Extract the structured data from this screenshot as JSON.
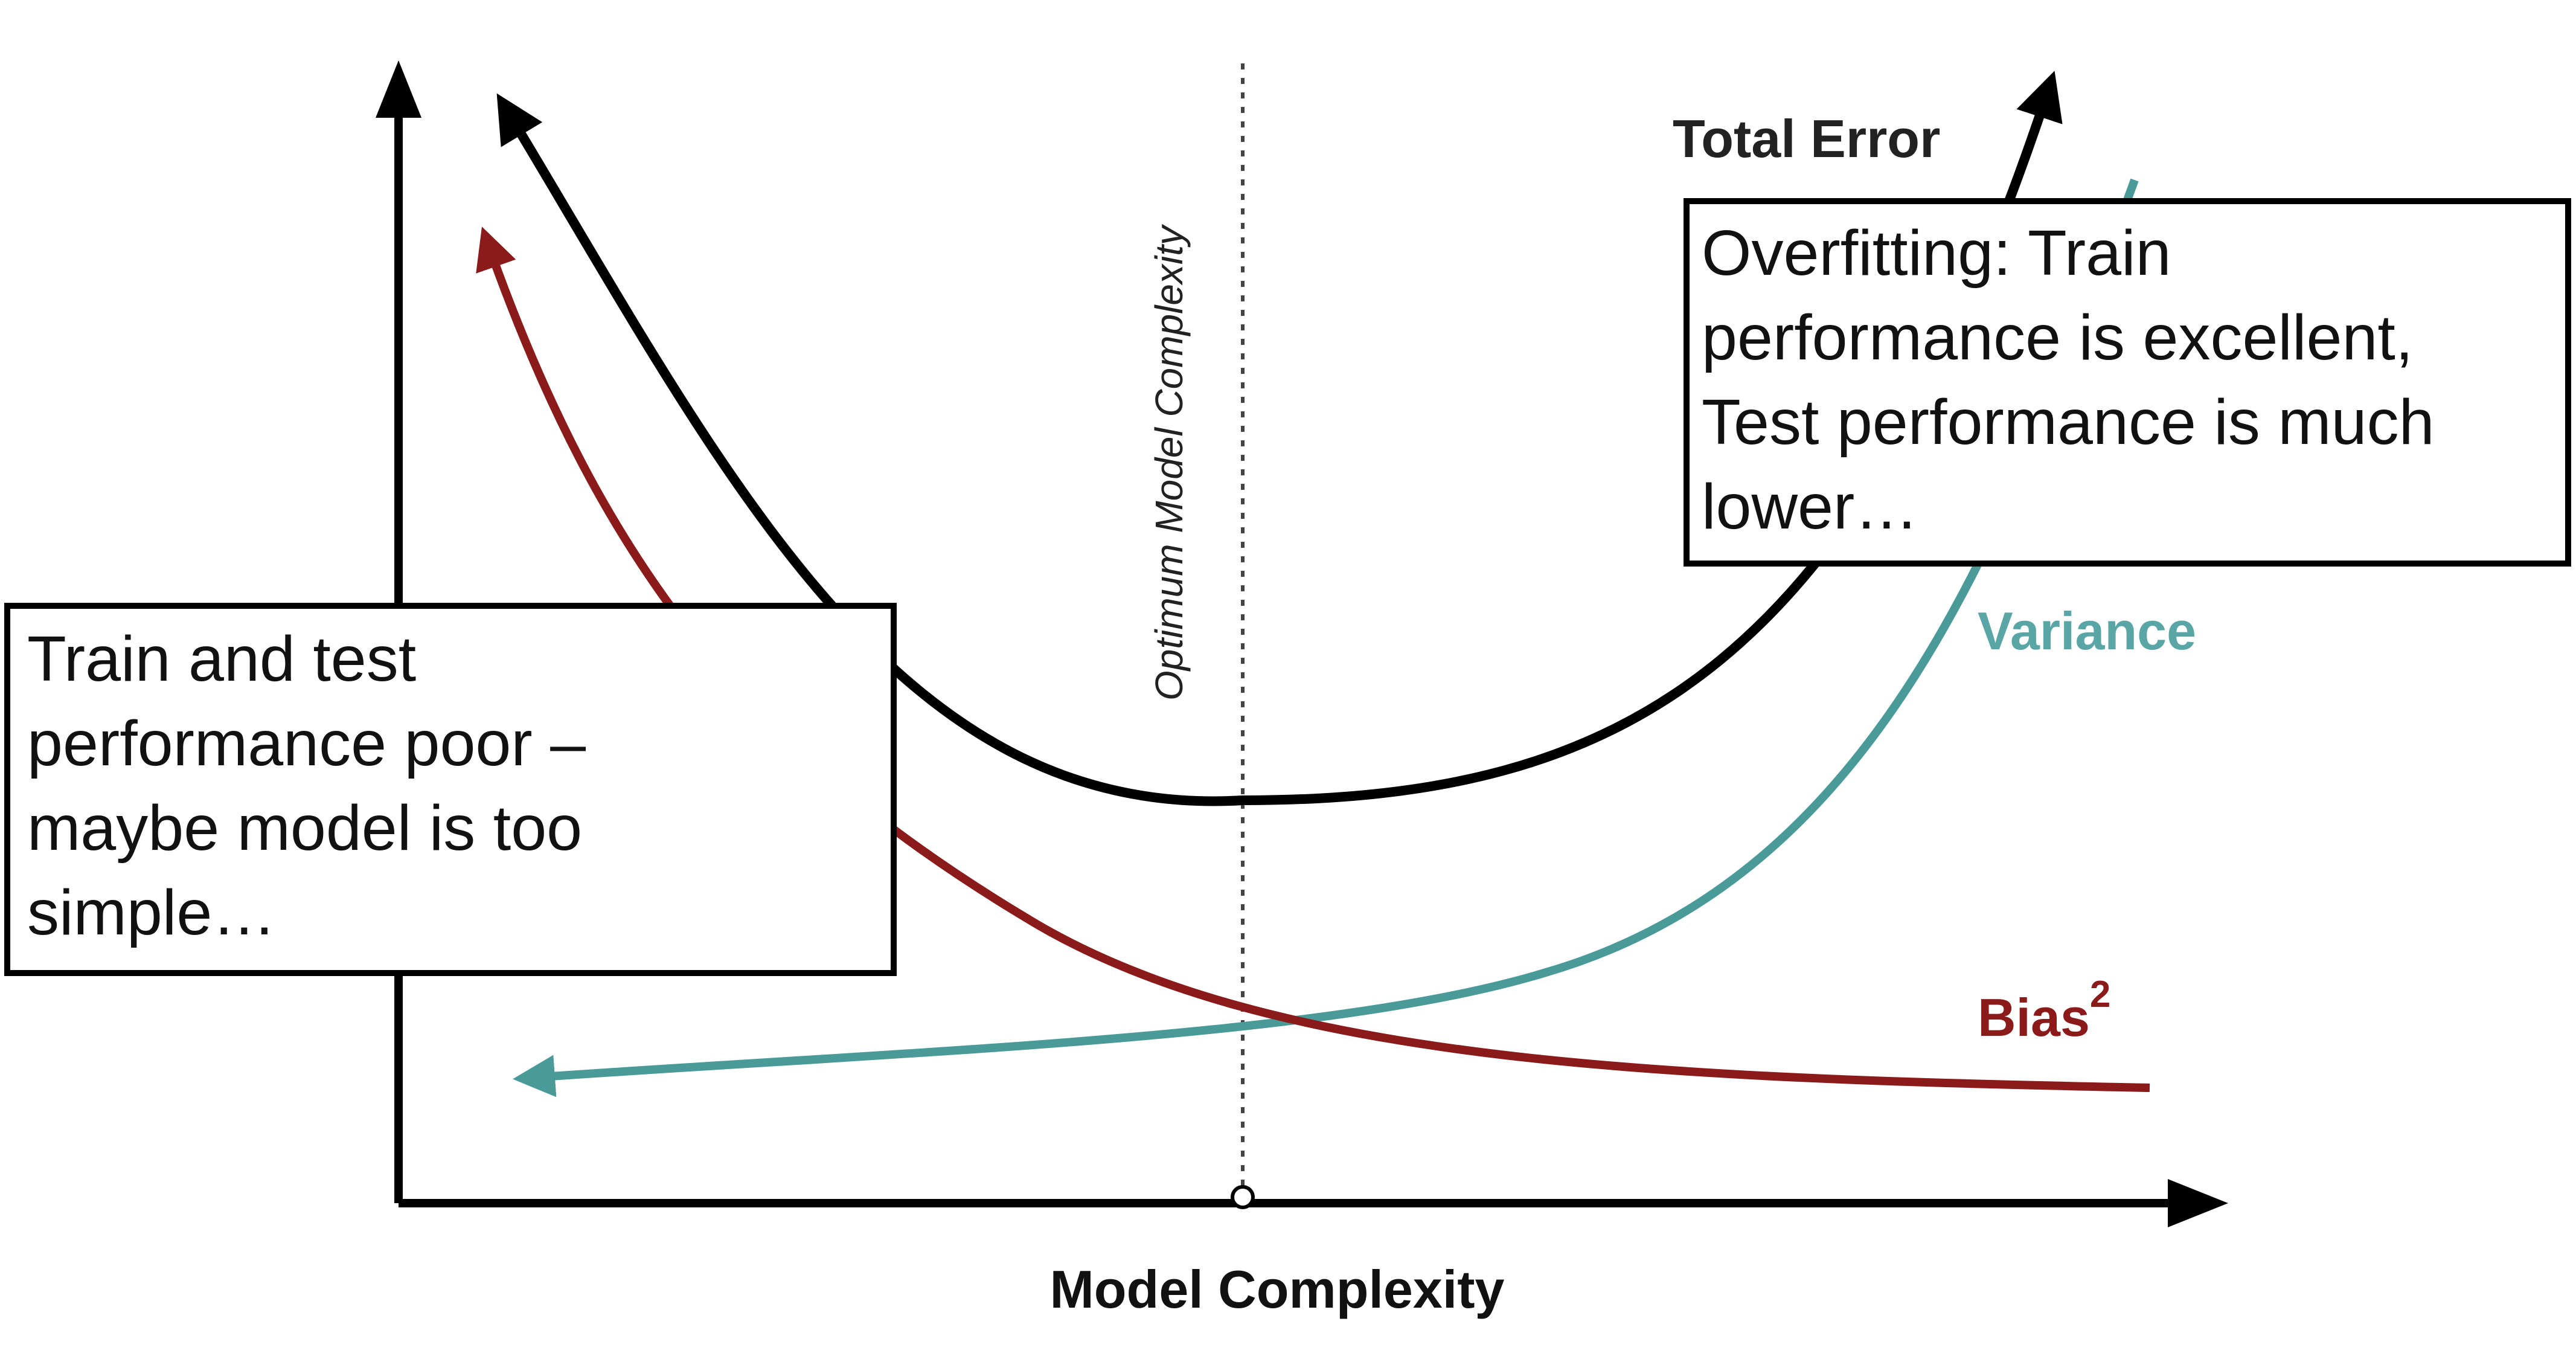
{
  "labels": {
    "total_error": "Total Error",
    "variance": "Variance",
    "bias": "Bias",
    "bias_superscript": "2",
    "x_axis": "Model Complexity",
    "optimum": "Optimum Model Complexity"
  },
  "callouts": {
    "underfitting": {
      "lines": [
        "Train and test",
        "performance poor –",
        "maybe model is too",
        "simple…"
      ]
    },
    "overfitting": {
      "lines": [
        "Overfitting: Train",
        "performance is excellent,",
        "Test performance is much",
        "lower…"
      ]
    }
  },
  "colors": {
    "total_error": "#000000",
    "bias": "#8b1a1a",
    "variance": "#4a9a9a",
    "variance_label": "#5aa6a6",
    "axis": "#000000"
  },
  "icons": {
    "y_axis_arrow": "arrow-up-icon",
    "x_axis_arrow": "arrow-right-icon",
    "optimum_marker": "circle-marker-icon"
  }
}
